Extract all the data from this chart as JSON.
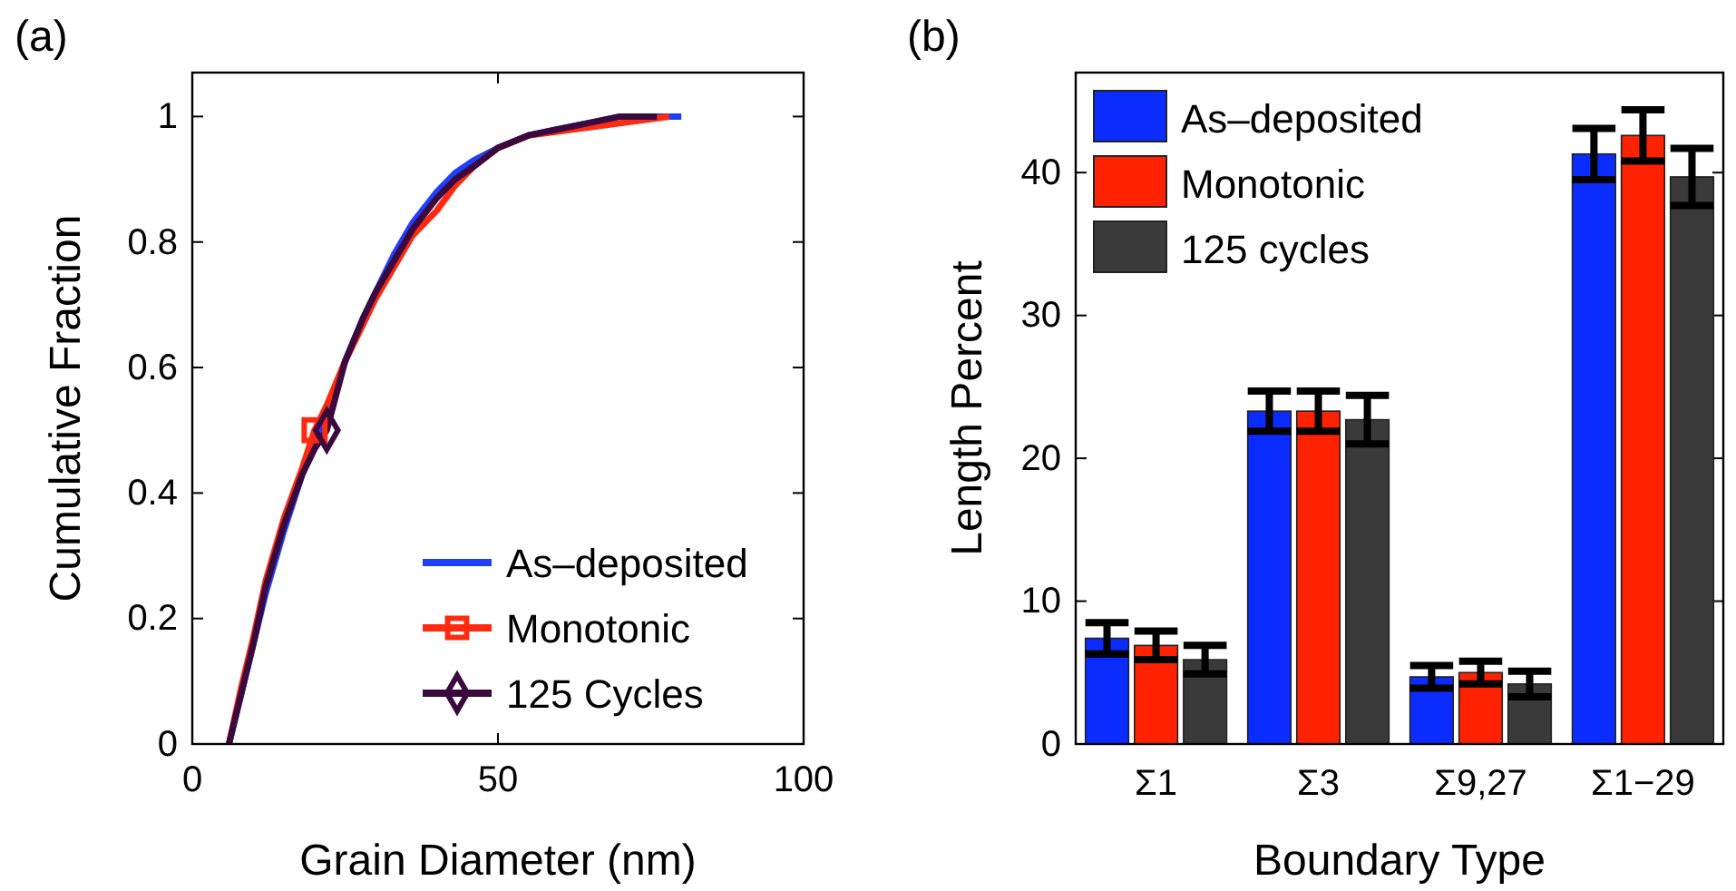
{
  "chart_data": [
    {
      "type": "line",
      "xlabel": "Grain Diameter (nm)",
      "ylabel": "Cumulative Fraction",
      "annotations": [
        "(a)"
      ],
      "xlim": [
        0,
        100
      ],
      "xticks": [
        0,
        50,
        100
      ],
      "ylim": [
        0,
        1.07
      ],
      "yticks": [
        0,
        0.2,
        0.4,
        0.6,
        0.8,
        1
      ],
      "legend": "bottom right",
      "line_style": "solid",
      "series": [
        {
          "name": "As–deposited",
          "color": "#1f3fff",
          "x": [
            6,
            8,
            10,
            12,
            15,
            18,
            20,
            22,
            25,
            28,
            30,
            33,
            36,
            40,
            43,
            46,
            50,
            55,
            60,
            65,
            70,
            75,
            80
          ],
          "values": [
            0,
            0.08,
            0.16,
            0.24,
            0.34,
            0.43,
            0.48,
            0.53,
            0.61,
            0.68,
            0.72,
            0.78,
            0.83,
            0.88,
            0.91,
            0.93,
            0.95,
            0.97,
            0.98,
            0.99,
            1,
            1,
            1
          ]
        },
        {
          "name": "Monotonic",
          "color": "#ff2a10",
          "x": [
            6,
            8,
            10,
            12,
            15,
            18,
            19,
            20,
            22,
            25,
            28,
            30,
            33,
            36,
            40,
            43,
            46,
            50,
            55,
            78
          ],
          "values": [
            0,
            0.09,
            0.17,
            0.26,
            0.36,
            0.44,
            0.47,
            0.5,
            0.54,
            0.61,
            0.67,
            0.71,
            0.76,
            0.81,
            0.85,
            0.89,
            0.92,
            0.95,
            0.97,
            1
          ]
        },
        {
          "name": "125 Cycles",
          "color": "#3a0a3f",
          "x": [
            6,
            8,
            10,
            12,
            15,
            18,
            20,
            22,
            25,
            28,
            30,
            33,
            36,
            40,
            43,
            46,
            50,
            55,
            60,
            65,
            70,
            76
          ],
          "values": [
            0,
            0.08,
            0.16,
            0.25,
            0.35,
            0.43,
            0.47,
            0.5,
            0.61,
            0.68,
            0.72,
            0.77,
            0.82,
            0.87,
            0.9,
            0.92,
            0.95,
            0.97,
            0.98,
            0.99,
            1,
            1
          ]
        },
        {
          "type": "scatter",
          "color": "#ff2a10",
          "marker": "square",
          "x": [
            20
          ],
          "values": [
            0.5
          ]
        },
        {
          "type": "scatter",
          "color": "#3a0a3f",
          "marker": "diamond",
          "x": [
            22
          ],
          "values": [
            0.5
          ]
        }
      ]
    },
    {
      "type": "bar",
      "xlabel": "Boundary Type",
      "ylabel": "Length Percent",
      "annotations": [
        "(b)"
      ],
      "categories": [
        "Σ1",
        "Σ3",
        "Σ9,27",
        "Σ1−29"
      ],
      "ylim": [
        0,
        47
      ],
      "yticks": [
        0,
        10,
        20,
        30,
        40
      ],
      "legend": "top left",
      "series": [
        {
          "name": "As–deposited",
          "color": "#0a2cff",
          "values": [
            7.4,
            23.3,
            4.7,
            41.3
          ],
          "errors": [
            1.1,
            1.4,
            0.8,
            1.8
          ]
        },
        {
          "name": "Monotonic",
          "color": "#ff2200",
          "values": [
            6.9,
            23.3,
            5.0,
            42.6
          ],
          "errors": [
            1.0,
            1.4,
            0.8,
            1.8
          ]
        },
        {
          "name": "125 cycles",
          "color": "#3a3a3a",
          "values": [
            5.9,
            22.7,
            4.2,
            39.7
          ],
          "errors": [
            1.0,
            1.7,
            0.9,
            2.0
          ]
        }
      ]
    }
  ]
}
